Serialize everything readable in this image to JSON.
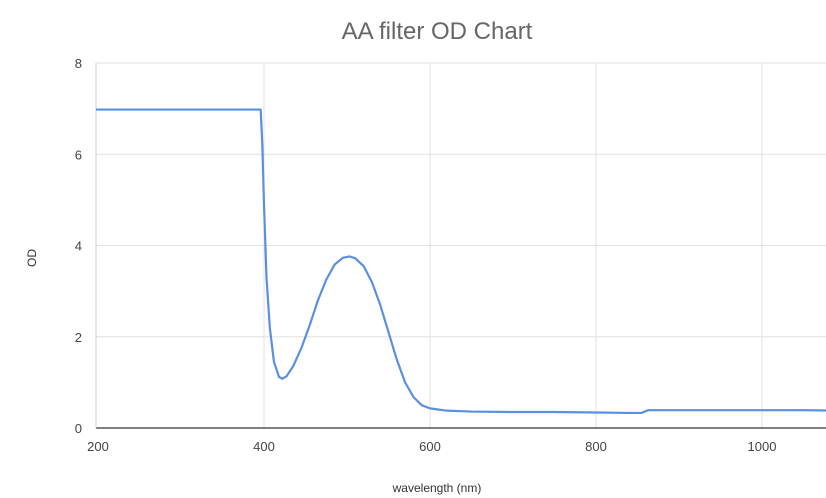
{
  "chart_data": {
    "type": "line",
    "title": "AA filter OD Chart",
    "xlabel": "wavelength (nm)",
    "ylabel": "OD",
    "xlim": [
      200,
      1090
    ],
    "ylim": [
      0,
      8
    ],
    "x_ticks": [
      200,
      400,
      600,
      800,
      1000
    ],
    "y_ticks": [
      0,
      2,
      4,
      6,
      8
    ],
    "grid": true,
    "legend": "none",
    "series": [
      {
        "color": "#5b8fe0",
        "points": [
          [
            190,
            6.98
          ],
          [
            390,
            6.98
          ],
          [
            396,
            6.98
          ],
          [
            398,
            6.2
          ],
          [
            400,
            4.9
          ],
          [
            403,
            3.3
          ],
          [
            407,
            2.2
          ],
          [
            412,
            1.45
          ],
          [
            418,
            1.12
          ],
          [
            422,
            1.08
          ],
          [
            427,
            1.13
          ],
          [
            435,
            1.35
          ],
          [
            445,
            1.75
          ],
          [
            455,
            2.25
          ],
          [
            465,
            2.8
          ],
          [
            475,
            3.25
          ],
          [
            485,
            3.58
          ],
          [
            495,
            3.73
          ],
          [
            503,
            3.76
          ],
          [
            510,
            3.72
          ],
          [
            520,
            3.55
          ],
          [
            530,
            3.2
          ],
          [
            540,
            2.7
          ],
          [
            550,
            2.1
          ],
          [
            560,
            1.5
          ],
          [
            570,
            1.0
          ],
          [
            580,
            0.68
          ],
          [
            590,
            0.5
          ],
          [
            600,
            0.43
          ],
          [
            620,
            0.38
          ],
          [
            650,
            0.36
          ],
          [
            700,
            0.35
          ],
          [
            750,
            0.35
          ],
          [
            800,
            0.34
          ],
          [
            840,
            0.33
          ],
          [
            855,
            0.33
          ],
          [
            860,
            0.37
          ],
          [
            863,
            0.39
          ],
          [
            900,
            0.39
          ],
          [
            950,
            0.39
          ],
          [
            1000,
            0.39
          ],
          [
            1050,
            0.39
          ],
          [
            1090,
            0.38
          ]
        ]
      }
    ]
  }
}
